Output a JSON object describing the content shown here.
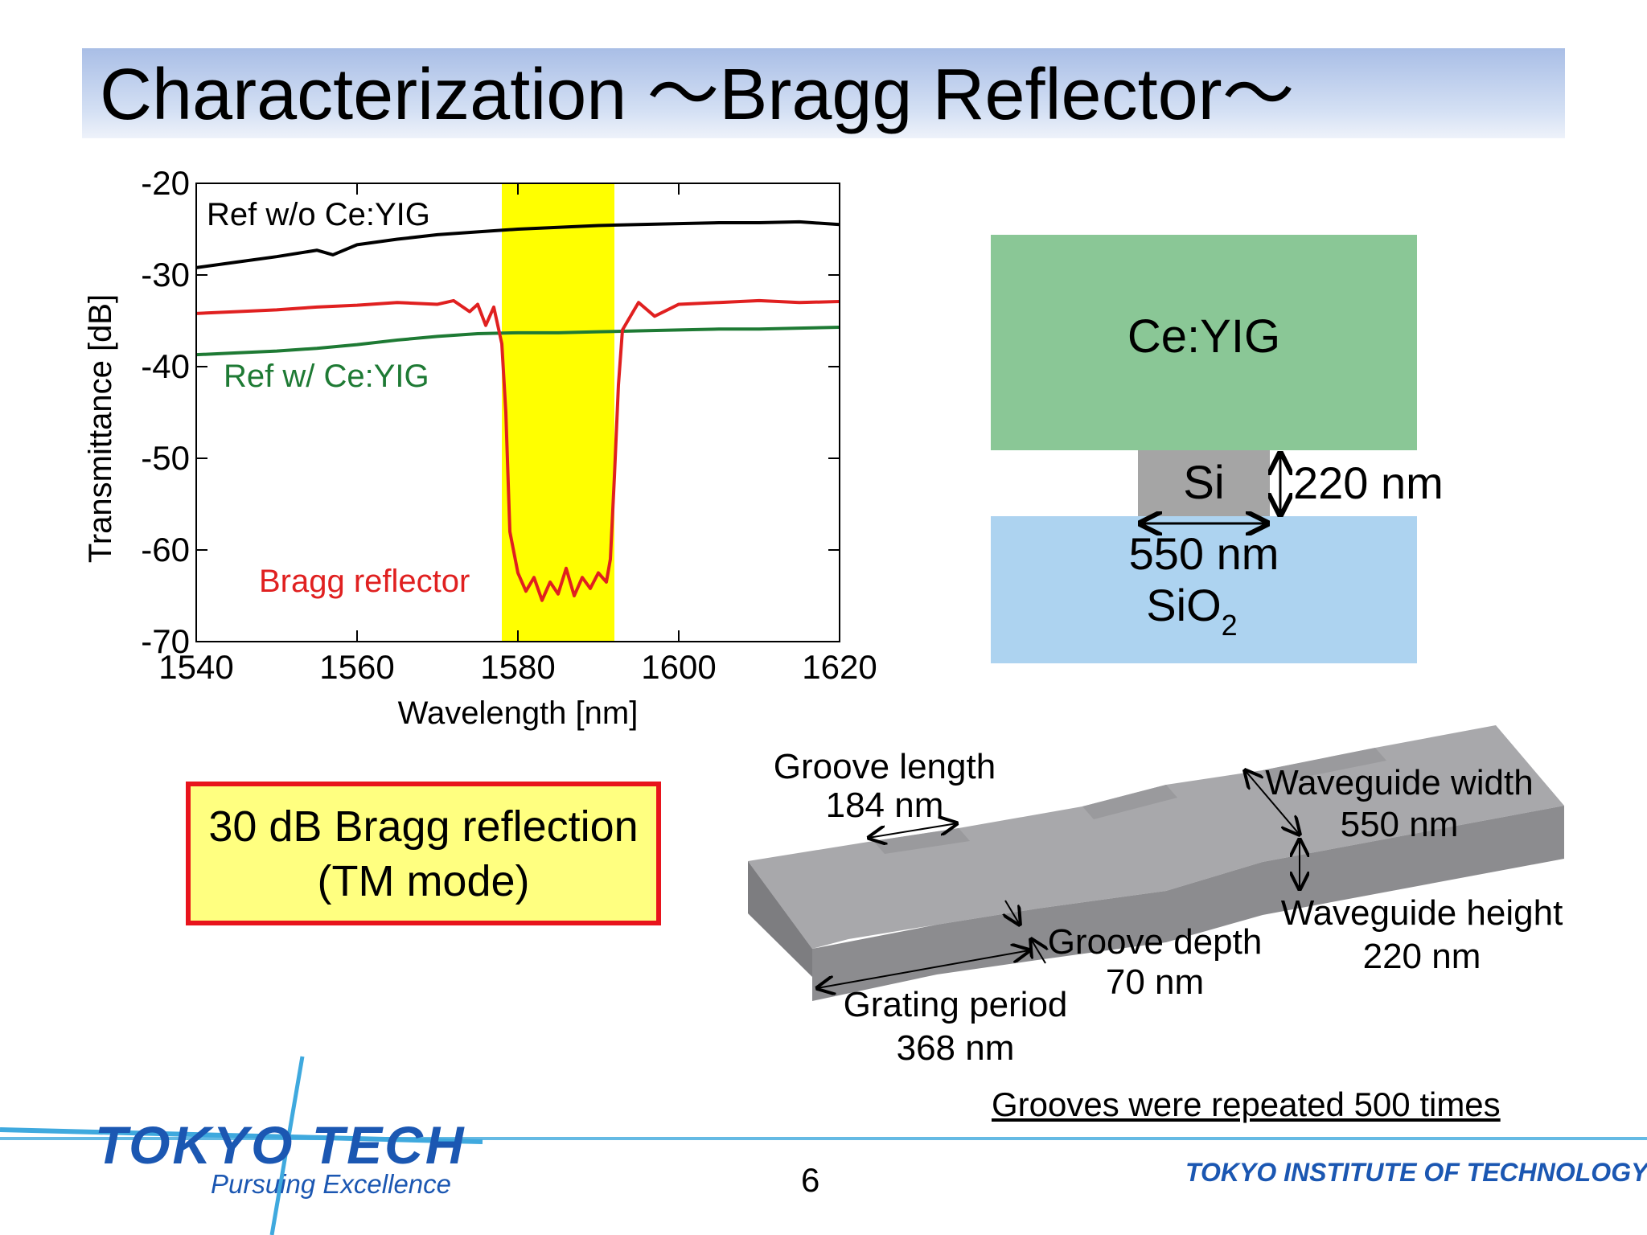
{
  "slide": {
    "title": "Characterization ～Bragg Reflector～",
    "page_number": "6",
    "callout_line1": "30 dB Bragg reflection",
    "callout_line2": "(TM mode)",
    "footnote": "Grooves were repeated 500 times",
    "logo_main": "TOKYO TECH",
    "logo_sub": "Pursuing Excellence",
    "institute": "TOKYO INSTITUTE OF TECHNOLOGY",
    "colors": {
      "accent_blue": "#1b57b2",
      "callout_fill": "#ffff80",
      "callout_border": "#e8141c"
    }
  },
  "cross_section": {
    "top_label": "Ce:YIG",
    "core_label": "Si",
    "bottom_label_main": "SiO",
    "bottom_label_sub": "2",
    "height_label": "220 nm",
    "width_label": "550 nm",
    "colors": {
      "ceyig": "#8ac796",
      "si": "#a5a5a5",
      "sio2": "#add3f0"
    }
  },
  "waveguide": {
    "groove_length_line1": "Groove length",
    "groove_length_line2": "184 nm",
    "waveguide_width_line1": "Waveguide width",
    "waveguide_width_line2": "550 nm",
    "waveguide_height_line1": "Waveguide height",
    "waveguide_height_line2": "220 nm",
    "groove_depth_line1": "Groove depth",
    "groove_depth_line2": "70 nm",
    "grating_period_line1": "Grating period",
    "grating_period_line2": "368 nm"
  },
  "chart_data": {
    "type": "line",
    "title": "",
    "xlabel": "Wavelength [nm]",
    "ylabel": "Transmittance [dB]",
    "xlim": [
      1540,
      1620
    ],
    "ylim": [
      -70,
      -20
    ],
    "xticks": [
      1540,
      1560,
      1580,
      1600,
      1620
    ],
    "yticks": [
      -20,
      -30,
      -40,
      -50,
      -60,
      -70
    ],
    "grid": false,
    "highlight_band": {
      "x": [
        1578,
        1592
      ],
      "color": "#ffff00"
    },
    "series": [
      {
        "name": "Ref w/o Ce:YIG",
        "color": "#000000",
        "label_position": "top-left",
        "x": [
          1540,
          1545,
          1550,
          1555,
          1557,
          1560,
          1565,
          1570,
          1575,
          1580,
          1585,
          1590,
          1595,
          1600,
          1605,
          1610,
          1615,
          1620
        ],
        "y": [
          -29.2,
          -28.6,
          -28.0,
          -27.3,
          -27.8,
          -26.7,
          -26.1,
          -25.6,
          -25.3,
          -25.0,
          -24.8,
          -24.6,
          -24.5,
          -24.4,
          -24.3,
          -24.3,
          -24.2,
          -24.5
        ]
      },
      {
        "name": "Ref w/ Ce:YIG",
        "color": "#1e7a34",
        "label_position": "left",
        "x": [
          1540,
          1545,
          1550,
          1555,
          1560,
          1565,
          1570,
          1575,
          1580,
          1585,
          1590,
          1595,
          1600,
          1605,
          1610,
          1615,
          1620
        ],
        "y": [
          -38.7,
          -38.5,
          -38.3,
          -38.0,
          -37.6,
          -37.1,
          -36.7,
          -36.4,
          -36.3,
          -36.3,
          -36.2,
          -36.1,
          -36.0,
          -35.9,
          -35.9,
          -35.8,
          -35.7
        ]
      },
      {
        "name": "Bragg reflector",
        "color": "#e02020",
        "label_position": "bottom-left",
        "x": [
          1540,
          1545,
          1550,
          1555,
          1560,
          1565,
          1570,
          1572,
          1574,
          1575,
          1576,
          1577,
          1578,
          1578.5,
          1579,
          1580,
          1581,
          1582,
          1583,
          1584,
          1585,
          1586,
          1587,
          1588,
          1589,
          1590,
          1591,
          1591.5,
          1592,
          1592.5,
          1593,
          1594,
          1595,
          1597,
          1600,
          1605,
          1610,
          1615,
          1620
        ],
        "y": [
          -34.2,
          -34.0,
          -33.8,
          -33.5,
          -33.3,
          -33.0,
          -33.2,
          -32.8,
          -34.0,
          -33.2,
          -35.5,
          -33.5,
          -37.5,
          -45.0,
          -58.0,
          -62.5,
          -64.5,
          -63.0,
          -65.5,
          -63.5,
          -64.8,
          -62.0,
          -65.0,
          -63.0,
          -64.2,
          -62.5,
          -63.5,
          -61.0,
          -52.0,
          -42.0,
          -36.0,
          -34.5,
          -33.0,
          -34.5,
          -33.2,
          -33.0,
          -32.8,
          -33.0,
          -32.9
        ]
      }
    ]
  }
}
